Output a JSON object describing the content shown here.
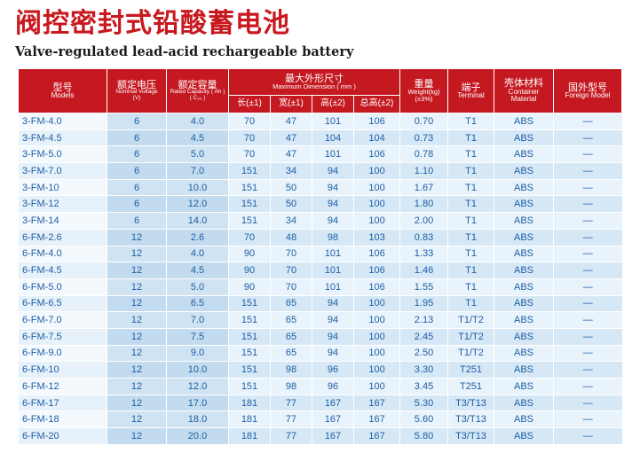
{
  "title_cn": "阀控密封式铅酸蓄电池",
  "title_en": "Valve-regulated lead-acid rechargeable battery",
  "headers": {
    "models_cn": "型号",
    "models_en": "Models",
    "voltage_cn": "额定电压",
    "voltage_en": "Nominal Voltage",
    "voltage_unit": "(V)",
    "capacity_cn": "额定容量",
    "capacity_en": "Rated Capacity ( Ah )",
    "capacity_unit": "( C₂₀ )",
    "dims_cn": "最大外形尺寸",
    "dims_en": "Maximum Dimension ( mm )",
    "length": "长(±1)",
    "width": "宽(±1)",
    "height": "高(±2)",
    "total_height": "总高(±2)",
    "weight_cn": "重量",
    "weight_en": "Weight(kg)",
    "weight_tol": "(±3%)",
    "terminal_cn": "端子",
    "terminal_en": "Terminal",
    "material_cn": "壳体材料",
    "material_en1": "Container",
    "material_en2": "Material",
    "foreign_cn": "国外型号",
    "foreign_en": "Foreign Model"
  },
  "rows": [
    {
      "model": "3-FM-4.0",
      "voltage": "6",
      "capacity": "4.0",
      "length": "70",
      "width": "47",
      "height": "101",
      "total": "106",
      "weight": "0.70",
      "terminal": "T1",
      "material": "ABS",
      "foreign": "—"
    },
    {
      "model": "3-FM-4.5",
      "voltage": "6",
      "capacity": "4.5",
      "length": "70",
      "width": "47",
      "height": "104",
      "total": "104",
      "weight": "0.73",
      "terminal": "T1",
      "material": "ABS",
      "foreign": "—"
    },
    {
      "model": "3-FM-5.0",
      "voltage": "6",
      "capacity": "5.0",
      "length": "70",
      "width": "47",
      "height": "101",
      "total": "106",
      "weight": "0.78",
      "terminal": "T1",
      "material": "ABS",
      "foreign": "—"
    },
    {
      "model": "3-FM-7.0",
      "voltage": "6",
      "capacity": "7.0",
      "length": "151",
      "width": "34",
      "height": "94",
      "total": "100",
      "weight": "1.10",
      "terminal": "T1",
      "material": "ABS",
      "foreign": "—"
    },
    {
      "model": "3-FM-10",
      "voltage": "6",
      "capacity": "10.0",
      "length": "151",
      "width": "50",
      "height": "94",
      "total": "100",
      "weight": "1.67",
      "terminal": "T1",
      "material": "ABS",
      "foreign": "—"
    },
    {
      "model": "3-FM-12",
      "voltage": "6",
      "capacity": "12.0",
      "length": "151",
      "width": "50",
      "height": "94",
      "total": "100",
      "weight": "1.80",
      "terminal": "T1",
      "material": "ABS",
      "foreign": "—"
    },
    {
      "model": "3-FM-14",
      "voltage": "6",
      "capacity": "14.0",
      "length": "151",
      "width": "34",
      "height": "94",
      "total": "100",
      "weight": "2.00",
      "terminal": "T1",
      "material": "ABS",
      "foreign": "—"
    },
    {
      "model": "6-FM-2.6",
      "voltage": "12",
      "capacity": "2.6",
      "length": "70",
      "width": "48",
      "height": "98",
      "total": "103",
      "weight": "0.83",
      "terminal": "T1",
      "material": "ABS",
      "foreign": "—"
    },
    {
      "model": "6-FM-4.0",
      "voltage": "12",
      "capacity": "4.0",
      "length": "90",
      "width": "70",
      "height": "101",
      "total": "106",
      "weight": "1.33",
      "terminal": "T1",
      "material": "ABS",
      "foreign": "—"
    },
    {
      "model": "6-FM-4.5",
      "voltage": "12",
      "capacity": "4.5",
      "length": "90",
      "width": "70",
      "height": "101",
      "total": "106",
      "weight": "1.46",
      "terminal": "T1",
      "material": "ABS",
      "foreign": "—"
    },
    {
      "model": "6-FM-5.0",
      "voltage": "12",
      "capacity": "5.0",
      "length": "90",
      "width": "70",
      "height": "101",
      "total": "106",
      "weight": "1.55",
      "terminal": "T1",
      "material": "ABS",
      "foreign": "—"
    },
    {
      "model": "6-FM-6.5",
      "voltage": "12",
      "capacity": "6.5",
      "length": "151",
      "width": "65",
      "height": "94",
      "total": "100",
      "weight": "1.95",
      "terminal": "T1",
      "material": "ABS",
      "foreign": "—"
    },
    {
      "model": "6-FM-7.0",
      "voltage": "12",
      "capacity": "7.0",
      "length": "151",
      "width": "65",
      "height": "94",
      "total": "100",
      "weight": "2.13",
      "terminal": "T1/T2",
      "material": "ABS",
      "foreign": "—"
    },
    {
      "model": "6-FM-7.5",
      "voltage": "12",
      "capacity": "7.5",
      "length": "151",
      "width": "65",
      "height": "94",
      "total": "100",
      "weight": "2.45",
      "terminal": "T1/T2",
      "material": "ABS",
      "foreign": "—"
    },
    {
      "model": "6-FM-9.0",
      "voltage": "12",
      "capacity": "9.0",
      "length": "151",
      "width": "65",
      "height": "94",
      "total": "100",
      "weight": "2.50",
      "terminal": "T1/T2",
      "material": "ABS",
      "foreign": "—"
    },
    {
      "model": "6-FM-10",
      "voltage": "12",
      "capacity": "10.0",
      "length": "151",
      "width": "98",
      "height": "96",
      "total": "100",
      "weight": "3.30",
      "terminal": "T251",
      "material": "ABS",
      "foreign": "—"
    },
    {
      "model": "6-FM-12",
      "voltage": "12",
      "capacity": "12.0",
      "length": "151",
      "width": "98",
      "height": "96",
      "total": "100",
      "weight": "3.45",
      "terminal": "T251",
      "material": "ABS",
      "foreign": "—"
    },
    {
      "model": "6-FM-17",
      "voltage": "12",
      "capacity": "17.0",
      "length": "181",
      "width": "77",
      "height": "167",
      "total": "167",
      "weight": "5.30",
      "terminal": "T3/T13",
      "material": "ABS",
      "foreign": "—"
    },
    {
      "model": "6-FM-18",
      "voltage": "12",
      "capacity": "18.0",
      "length": "181",
      "width": "77",
      "height": "167",
      "total": "167",
      "weight": "5.60",
      "terminal": "T3/T13",
      "material": "ABS",
      "foreign": "—"
    },
    {
      "model": "6-FM-20",
      "voltage": "12",
      "capacity": "20.0",
      "length": "181",
      "width": "77",
      "height": "167",
      "total": "167",
      "weight": "5.80",
      "terminal": "T3/T13",
      "material": "ABS",
      "foreign": "—"
    }
  ],
  "colors": {
    "header_bg": "#c41921",
    "title_red": "#c8191f",
    "cell_text": "#1d5fa6",
    "row_light": "#e9f3fb",
    "row_dark": "#d6e8f6"
  }
}
